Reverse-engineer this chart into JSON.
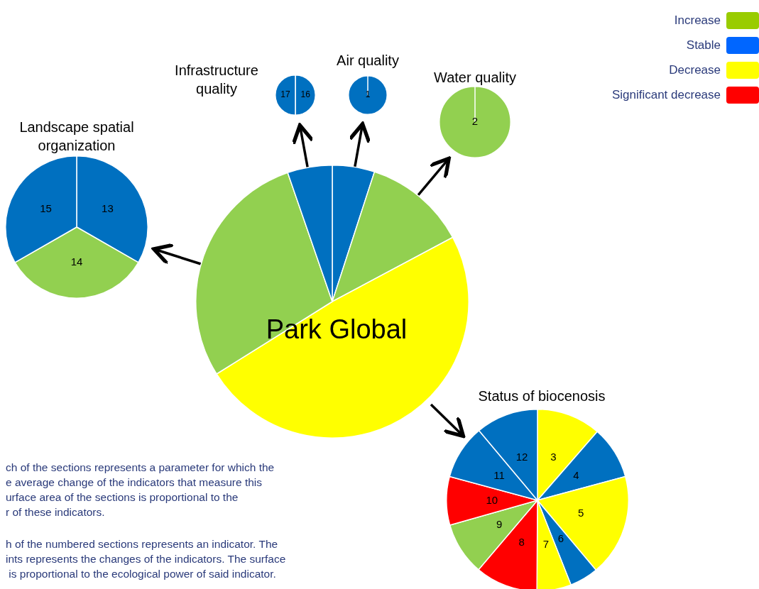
{
  "chart_data": [
    {
      "type": "pie",
      "title": "Park Global",
      "categories": [
        null,
        null,
        null,
        null,
        null
      ],
      "values": [
        5,
        12.2,
        48.9,
        28.6,
        5.3
      ],
      "colors": [
        "#0070c0",
        "#92d050",
        "#ffff00",
        "#92d050",
        "#0070c0"
      ],
      "annotations": [
        "ch of the sections represents a parameter for which the\ne average change of the indicators that measure this\nurface area of the sections is proportional to the\nr of these indicators.",
        "h of the numbered sections represents an indicator. The\nints represents the changes of the indicators. The surface\n is proportional to the ecological power of said indicator."
      ]
    },
    {
      "type": "pie",
      "title": "Landscape spatial organization",
      "categories": [
        "13",
        "14",
        "15"
      ],
      "values": [
        33.3,
        33.4,
        33.3
      ],
      "colors": [
        "#0070c0",
        "#92d050",
        "#0070c0"
      ]
    },
    {
      "type": "pie",
      "title": "Infrastructure quality",
      "categories": [
        "16",
        "17"
      ],
      "values": [
        50,
        50
      ],
      "colors": [
        "#0070c0",
        "#0070c0"
      ]
    },
    {
      "type": "pie",
      "title": "Air quality",
      "categories": [
        "1"
      ],
      "values": [
        100
      ],
      "colors": [
        "#0070c0"
      ]
    },
    {
      "type": "pie",
      "title": "Water quality",
      "categories": [
        "2"
      ],
      "values": [
        100
      ],
      "colors": [
        "#92d050"
      ]
    },
    {
      "type": "pie",
      "title": "Status of biocenosis",
      "categories": [
        "3",
        "4",
        "5",
        "6",
        "7",
        "8",
        "9",
        "10",
        "11",
        "12"
      ],
      "values": [
        11.4,
        9.4,
        18.1,
        5.1,
        6.1,
        11.1,
        9.4,
        8.6,
        9.7,
        11.1
      ],
      "colors": [
        "#ffff00",
        "#0070c0",
        "#ffff00",
        "#0070c0",
        "#ffff00",
        "#ff0000",
        "#92d050",
        "#ff0000",
        "#0070c0",
        "#0070c0"
      ]
    },
    {
      "type": "other",
      "annotations": [
        "Increase",
        "Stable",
        "Decrease",
        "Significant decrease"
      ],
      "colors": [
        "#99cc00",
        "#0066ff",
        "#ffff00",
        "#ff0000"
      ]
    }
  ]
}
